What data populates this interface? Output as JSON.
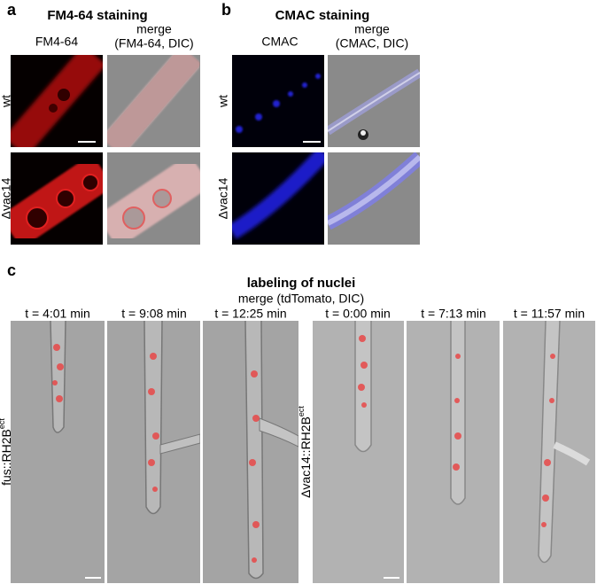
{
  "panels": [
    {
      "label": "a",
      "title": "FM4-64 staining",
      "columns": [
        {
          "lines": [
            "FM4-64"
          ]
        },
        {
          "lines": [
            "merge",
            "(FM4-64, DIC)"
          ]
        }
      ],
      "rows": [
        "wt",
        "Δvac14"
      ]
    },
    {
      "label": "b",
      "title": "CMAC staining",
      "columns": [
        {
          "lines": [
            "CMAC"
          ]
        },
        {
          "lines": [
            "merge",
            "(CMAC, DIC)"
          ]
        }
      ],
      "rows": [
        "wt",
        "Δvac14"
      ]
    },
    {
      "label": "c",
      "title": "labeling of nuclei",
      "subtitle": "merge (tdTomato, DIC)",
      "times": [
        "t = 4:01 min",
        "t = 9:08 min",
        "t = 12:25 min",
        "t = 0:00 min",
        "t = 7:13 min",
        "t = 11:57 min"
      ],
      "rows": [
        {
          "text": "fus::RH2B",
          "sup": "ect"
        },
        {
          "text": "Δvac14::RH2B",
          "sup": "ect"
        }
      ]
    }
  ]
}
